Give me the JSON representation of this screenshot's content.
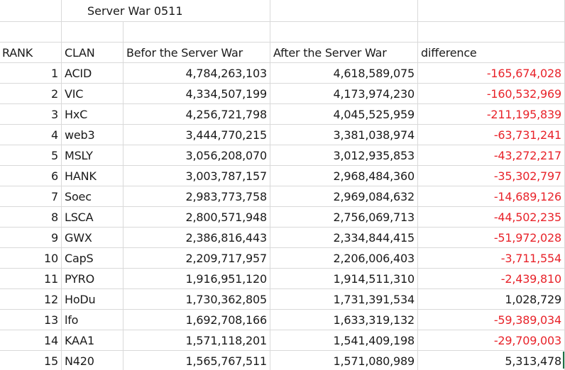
{
  "sheet": {
    "title": "Server War 0511",
    "headers": {
      "rank": "RANK",
      "clan": "CLAN",
      "before": "Befor the Server War",
      "after": "After the Server War",
      "difference": "difference"
    },
    "rows": [
      {
        "rank": "1",
        "clan": "ACID",
        "before": "4,784,263,103",
        "after": "4,618,589,075",
        "difference": "-165,674,028"
      },
      {
        "rank": "2",
        "clan": "VIC",
        "before": "4,334,507,199",
        "after": "4,173,974,230",
        "difference": "-160,532,969"
      },
      {
        "rank": "3",
        "clan": "HxC",
        "before": "4,256,721,798",
        "after": "4,045,525,959",
        "difference": "-211,195,839"
      },
      {
        "rank": "4",
        "clan": "web3",
        "before": "3,444,770,215",
        "after": "3,381,038,974",
        "difference": "-63,731,241"
      },
      {
        "rank": "5",
        "clan": "MSLY",
        "before": "3,056,208,070",
        "after": "3,012,935,853",
        "difference": "-43,272,217"
      },
      {
        "rank": "6",
        "clan": "HANK",
        "before": "3,003,787,157",
        "after": "2,968,484,360",
        "difference": "-35,302,797"
      },
      {
        "rank": "7",
        "clan": "Soec",
        "before": "2,983,773,758",
        "after": "2,969,084,632",
        "difference": "-14,689,126"
      },
      {
        "rank": "8",
        "clan": "LSCA",
        "before": "2,800,571,948",
        "after": "2,756,069,713",
        "difference": "-44,502,235"
      },
      {
        "rank": "9",
        "clan": "GWX",
        "before": "2,386,816,443",
        "after": "2,334,844,415",
        "difference": "-51,972,028"
      },
      {
        "rank": "10",
        "clan": "CapS",
        "before": "2,209,717,957",
        "after": "2,206,006,403",
        "difference": "-3,711,554"
      },
      {
        "rank": "11",
        "clan": "PYRO",
        "before": "1,916,951,120",
        "after": "1,914,511,310",
        "difference": "-2,439,810"
      },
      {
        "rank": "12",
        "clan": "HoDu",
        "before": "1,730,362,805",
        "after": "1,731,391,534",
        "difference": "1,028,729"
      },
      {
        "rank": "13",
        "clan": "lfo",
        "before": "1,692,708,166",
        "after": "1,633,319,132",
        "difference": "-59,389,034"
      },
      {
        "rank": "14",
        "clan": "KAA1",
        "before": "1,571,118,201",
        "after": "1,541,409,198",
        "difference": "-29,709,003"
      },
      {
        "rank": "15",
        "clan": "N420",
        "before": "1,565,767,511",
        "after": "1,571,080,989",
        "difference": "5,313,478"
      }
    ]
  },
  "colors": {
    "negative": "#e8232a",
    "positive": "#1a1a1a",
    "gridline": "#d9d9d9"
  }
}
